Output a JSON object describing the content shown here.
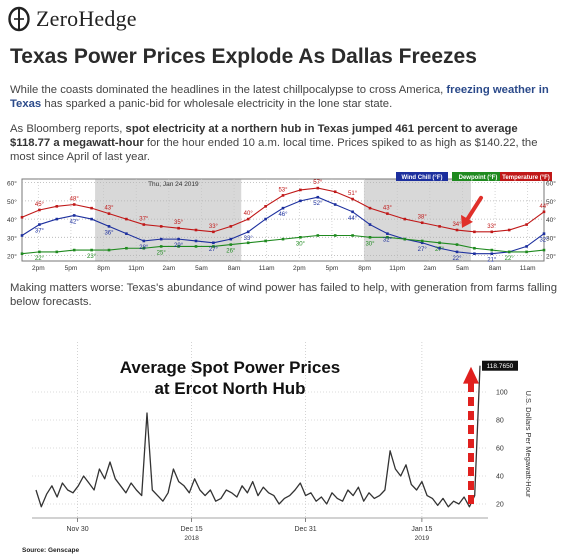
{
  "site": {
    "logo_icon": "zerohedge-logo-icon",
    "name": "ZeroHedge"
  },
  "article": {
    "headline": "Texas Power Prices Explode As Dallas Freezes",
    "p1": {
      "a": "While the coasts dominated the headlines in the latest chillpocalypse to cross America, ",
      "link": "freezing weather in Texas",
      "b": " has sparked a panic-bid for wholesale electricity in the lone star state."
    },
    "p2": {
      "a": "As Bloomberg reports, ",
      "bold": "spot electricity at a northern hub in Texas jumped 461 percent to average $118.77 a megawatt-hour",
      "b": " for the hour ended 10 a.m. local time. Prices spiked to as high as $140.22, the most since April of last year."
    },
    "p3": "Making matters worse: Texas's abundance of wind power has failed to help, with generation from farms falling below forecasts."
  },
  "weather_chart": {
    "date_label": "Thu, Jan 24 2019",
    "legend": [
      "Wind Chill (°F)",
      "Dewpoint (°F)",
      "Temperature (°F)"
    ],
    "colors": {
      "windchill": "#1c2f9e",
      "dewpoint": "#1f8a1f",
      "temperature": "#c01818",
      "arrow": "#e0302a",
      "shade": "#d8d8d8"
    },
    "y_ticks": [
      20,
      30,
      40,
      50,
      60
    ],
    "y_tick_labels": [
      "20°",
      "30°",
      "40°",
      "50°",
      "60°"
    ],
    "x_ticks": [
      "2pm",
      "5pm",
      "8pm",
      "11pm",
      "2am",
      "5am",
      "8am",
      "11am",
      "2pm",
      "5pm",
      "8pm",
      "11pm",
      "2am",
      "5am",
      "8am",
      "11am"
    ],
    "temperature": [
      41,
      45,
      47,
      48,
      46,
      43,
      40,
      37,
      36,
      35,
      34,
      33,
      36,
      40,
      47,
      53,
      56,
      57,
      55,
      51,
      46,
      43,
      40,
      38,
      36,
      34,
      33,
      33,
      34,
      37,
      44
    ],
    "windchill": [
      31,
      37,
      40,
      42,
      40,
      36,
      32,
      28,
      29,
      29,
      28,
      27,
      29,
      33,
      40,
      46,
      50,
      52,
      48,
      44,
      37,
      32,
      29,
      27,
      24,
      22,
      21,
      21,
      22,
      25,
      32
    ],
    "dewpoint": [
      21,
      22,
      22,
      23,
      23,
      23,
      24,
      24,
      25,
      25,
      25,
      25,
      26,
      27,
      28,
      29,
      30,
      31,
      31,
      31,
      30,
      30,
      29,
      28,
      27,
      26,
      24,
      23,
      22,
      22,
      23
    ],
    "temperature_labels": [
      {
        "i": 1,
        "t": "45°"
      },
      {
        "i": 3,
        "t": "48°"
      },
      {
        "i": 5,
        "t": "43°"
      },
      {
        "i": 7,
        "t": "37°"
      },
      {
        "i": 9,
        "t": "35°"
      },
      {
        "i": 11,
        "t": "33°"
      },
      {
        "i": 13,
        "t": "40°"
      },
      {
        "i": 15,
        "t": "53°"
      },
      {
        "i": 17,
        "t": "57°"
      },
      {
        "i": 19,
        "t": "51°"
      },
      {
        "i": 21,
        "t": "43°"
      },
      {
        "i": 23,
        "t": "38°"
      },
      {
        "i": 25,
        "t": "34°"
      },
      {
        "i": 27,
        "t": "33°"
      },
      {
        "i": 30,
        "t": "44°"
      }
    ],
    "windchill_labels": [
      {
        "i": 1,
        "t": "37°"
      },
      {
        "i": 3,
        "t": "42°"
      },
      {
        "i": 5,
        "t": "36°"
      },
      {
        "i": 7,
        "t": "28°"
      },
      {
        "i": 9,
        "t": "29°"
      },
      {
        "i": 11,
        "t": "27°"
      },
      {
        "i": 13,
        "t": "33°"
      },
      {
        "i": 15,
        "t": "46°"
      },
      {
        "i": 17,
        "t": "52°"
      },
      {
        "i": 19,
        "t": "44°"
      },
      {
        "i": 21,
        "t": "32°"
      },
      {
        "i": 23,
        "t": "27°"
      },
      {
        "i": 25,
        "t": "22°"
      },
      {
        "i": 27,
        "t": "21°"
      },
      {
        "i": 30,
        "t": "32°"
      }
    ],
    "dewpoint_labels": [
      {
        "i": 1,
        "t": "22°"
      },
      {
        "i": 4,
        "t": "23°"
      },
      {
        "i": 8,
        "t": "25°"
      },
      {
        "i": 12,
        "t": "26°"
      },
      {
        "i": 16,
        "t": "30°"
      },
      {
        "i": 20,
        "t": "30°"
      },
      {
        "i": 24,
        "t": "27°"
      },
      {
        "i": 28,
        "t": "22°"
      }
    ]
  },
  "chart_data": {
    "type": "line",
    "title": "Average Spot Power Prices at Ercot North Hub",
    "title_lines": [
      "Average Spot Power Prices",
      "at Ercot North Hub"
    ],
    "ylabel": "U.S. Dollars Per Megawatt-Hour",
    "ylim": [
      10,
      130
    ],
    "y_ticks": [
      20,
      40,
      60,
      80,
      100
    ],
    "x_ticks": [
      {
        "pos": 0.1,
        "label": "Nov 30",
        "year": ""
      },
      {
        "pos": 0.35,
        "label": "Dec 15",
        "year": "2018"
      },
      {
        "pos": 0.6,
        "label": "Dec 31",
        "year": ""
      },
      {
        "pos": 0.855,
        "label": "Jan 15",
        "year": "2019"
      }
    ],
    "last_value_label": "118.7650",
    "source": "Source: Genscape",
    "line_color": "#333333",
    "arrow_color": "#e0201e",
    "values": [
      30,
      18,
      27,
      33,
      25,
      35,
      30,
      28,
      33,
      40,
      35,
      30,
      45,
      38,
      50,
      38,
      33,
      28,
      35,
      30,
      26,
      85,
      30,
      26,
      22,
      28,
      45,
      36,
      33,
      28,
      38,
      30,
      26,
      30,
      22,
      24,
      30,
      28,
      25,
      33,
      28,
      36,
      26,
      32,
      28,
      26,
      20,
      24,
      26,
      30,
      35,
      26,
      28,
      22,
      25,
      20,
      28,
      24,
      22,
      30,
      26,
      32,
      22,
      28,
      24,
      26,
      30,
      58,
      45,
      40,
      48,
      34,
      30,
      36,
      26,
      24,
      19,
      24,
      18,
      22,
      20,
      25,
      18,
      26,
      118.77
    ]
  }
}
